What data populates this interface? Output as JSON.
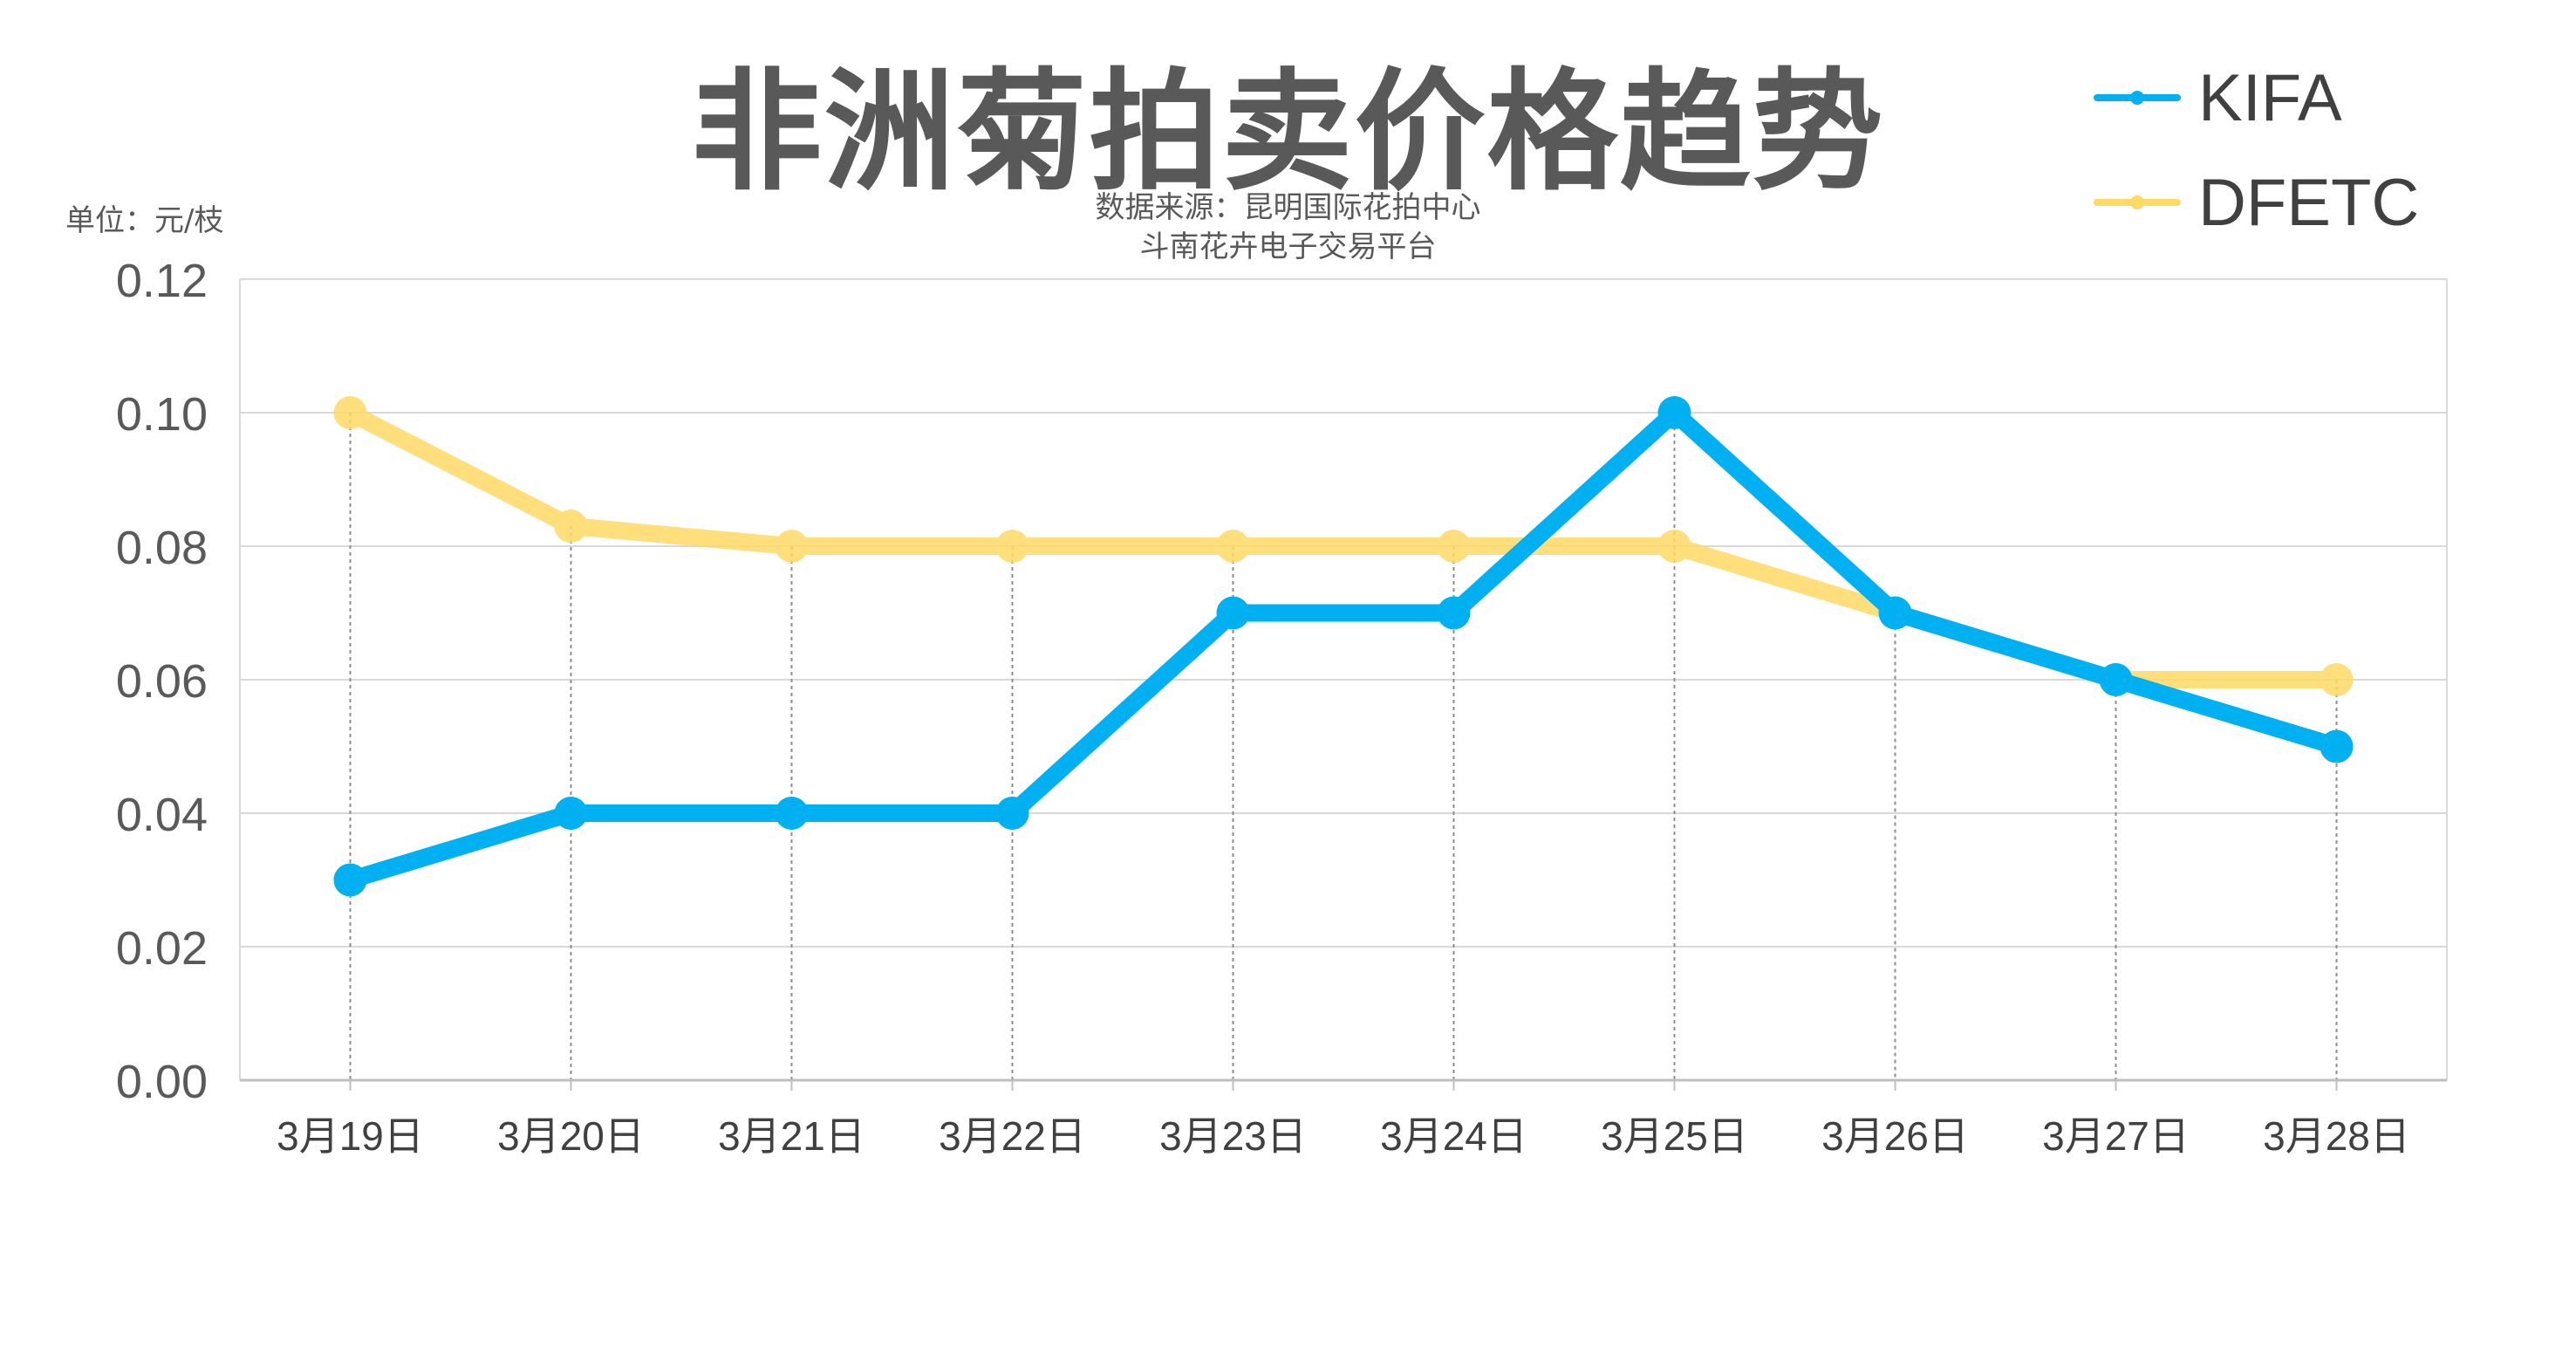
{
  "chart_data": {
    "type": "line",
    "title": "非洲菊拍卖价格趋势",
    "subtitle_lines": [
      "数据来源：昆明国际花拍中心",
      "斗南花卉电子交易平台"
    ],
    "unit": "单位：元/枝",
    "categories": [
      "3月19日",
      "3月20日",
      "3月21日",
      "3月22日",
      "3月23日",
      "3月24日",
      "3月25日",
      "3月26日",
      "3月27日",
      "3月28日"
    ],
    "ylim": [
      0,
      0.12
    ],
    "yticks": [
      "0.00",
      "0.02",
      "0.04",
      "0.06",
      "0.08",
      "0.10",
      "0.12"
    ],
    "grid": true,
    "legend_position": "top-right",
    "series": [
      {
        "name": "KIFA",
        "color": "#00B0F0",
        "values": [
          0.03,
          0.04,
          0.04,
          0.04,
          0.07,
          0.07,
          0.1,
          0.07,
          0.06,
          0.05
        ]
      },
      {
        "name": "DFETC",
        "color": "#FFD966",
        "values": [
          0.1,
          0.083,
          0.08,
          0.08,
          0.08,
          0.08,
          0.08,
          0.07,
          0.06,
          0.06
        ]
      }
    ]
  }
}
